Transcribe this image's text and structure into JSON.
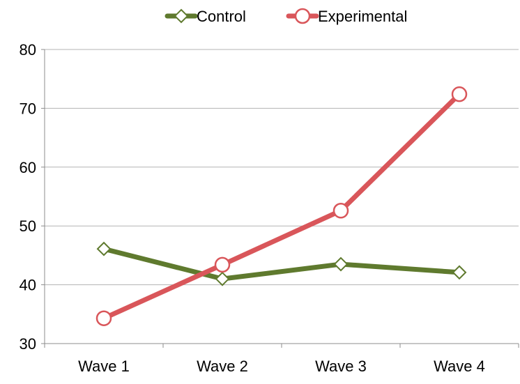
{
  "chart_data": {
    "type": "line",
    "title": "",
    "xlabel": "",
    "ylabel": "",
    "categories": [
      "Wave 1",
      "Wave 2",
      "Wave 3",
      "Wave 4"
    ],
    "series": [
      {
        "name": "Control",
        "values": [
          46.1,
          41.0,
          43.5,
          42.1
        ],
        "color": "#5f7a2e",
        "marker": "diamond"
      },
      {
        "name": "Experimental",
        "values": [
          34.3,
          43.4,
          52.6,
          72.4
        ],
        "color": "#d9565a",
        "marker": "circle"
      }
    ],
    "ylim": [
      30,
      80
    ],
    "yticks": [
      30,
      40,
      50,
      60,
      70,
      80
    ],
    "grid": true,
    "legend_position": "top"
  }
}
